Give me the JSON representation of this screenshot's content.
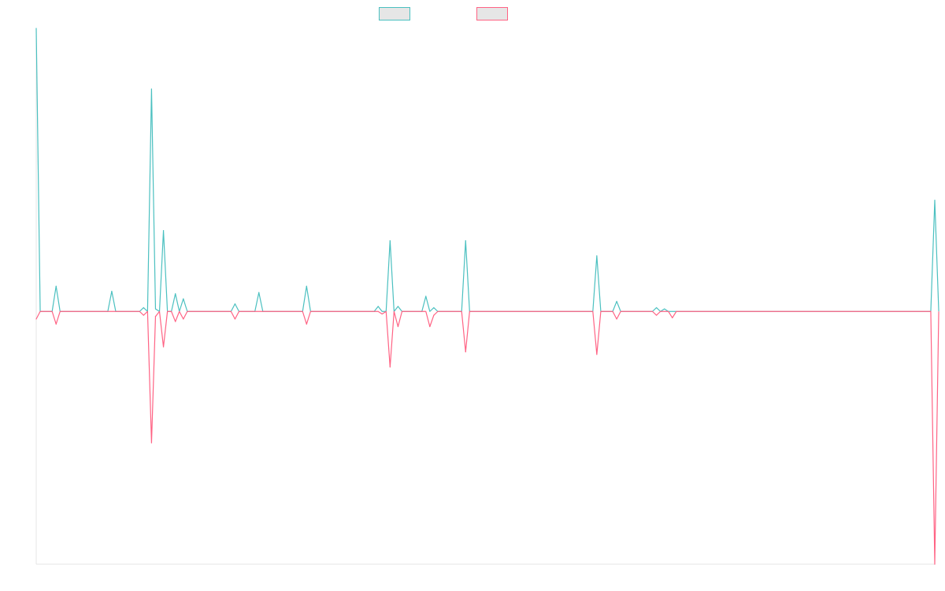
{
  "chart_data": {
    "type": "line",
    "title": "",
    "xlabel": "",
    "ylabel": "",
    "legend_position": "top-center",
    "grid": false,
    "ylim": [
      -100,
      112
    ],
    "x_count": 226,
    "series": [
      {
        "color": "#4bc0c0",
        "fill_color": "#e6e6e6",
        "points": [
          [
            0,
            112
          ],
          [
            1,
            0
          ],
          [
            4,
            0
          ],
          [
            5,
            10
          ],
          [
            6,
            0
          ],
          [
            18,
            0
          ],
          [
            19,
            8
          ],
          [
            20,
            0
          ],
          [
            26,
            0
          ],
          [
            27,
            1.5
          ],
          [
            28,
            0
          ],
          [
            29,
            88
          ],
          [
            30,
            1
          ],
          [
            31,
            0
          ],
          [
            32,
            32
          ],
          [
            33,
            0
          ],
          [
            34,
            0
          ],
          [
            35,
            7
          ],
          [
            36,
            0
          ],
          [
            37,
            5
          ],
          [
            38,
            0
          ],
          [
            49,
            0
          ],
          [
            50,
            3
          ],
          [
            51,
            0
          ],
          [
            55,
            0
          ],
          [
            56,
            7.5
          ],
          [
            57,
            0
          ],
          [
            67,
            0
          ],
          [
            68,
            10
          ],
          [
            69,
            0
          ],
          [
            85,
            0
          ],
          [
            86,
            2
          ],
          [
            87,
            0
          ],
          [
            88,
            0
          ],
          [
            89,
            28
          ],
          [
            90,
            0
          ],
          [
            91,
            2
          ],
          [
            92,
            0
          ],
          [
            97,
            0
          ],
          [
            98,
            6
          ],
          [
            99,
            0
          ],
          [
            100,
            1.5
          ],
          [
            101,
            0
          ],
          [
            107,
            0
          ],
          [
            108,
            28
          ],
          [
            109,
            0
          ],
          [
            140,
            0
          ],
          [
            141,
            22
          ],
          [
            142,
            0
          ],
          [
            145,
            0
          ],
          [
            146,
            4
          ],
          [
            147,
            0
          ],
          [
            155,
            0
          ],
          [
            156,
            1.5
          ],
          [
            157,
            0
          ],
          [
            158,
            1
          ],
          [
            159,
            0
          ],
          [
            225,
            0
          ],
          [
            226,
            44
          ],
          [
            227,
            0
          ]
        ]
      },
      {
        "color": "#ff6384",
        "fill_color": "#e6e6e6",
        "points": [
          [
            0,
            -3
          ],
          [
            1,
            0
          ],
          [
            4,
            0
          ],
          [
            5,
            -5
          ],
          [
            6,
            0
          ],
          [
            26,
            0
          ],
          [
            27,
            -1.5
          ],
          [
            28,
            0
          ],
          [
            29,
            -52
          ],
          [
            30,
            -2
          ],
          [
            31,
            0
          ],
          [
            32,
            -14
          ],
          [
            33,
            0
          ],
          [
            34,
            0
          ],
          [
            35,
            -4
          ],
          [
            36,
            0
          ],
          [
            37,
            -3
          ],
          [
            38,
            0
          ],
          [
            49,
            0
          ],
          [
            50,
            -3
          ],
          [
            51,
            0
          ],
          [
            67,
            0
          ],
          [
            68,
            -5
          ],
          [
            69,
            0
          ],
          [
            86,
            0
          ],
          [
            87,
            -1
          ],
          [
            88,
            0
          ],
          [
            89,
            -22
          ],
          [
            90,
            0
          ],
          [
            91,
            -6
          ],
          [
            92,
            0
          ],
          [
            98,
            0
          ],
          [
            99,
            -6
          ],
          [
            100,
            -1.5
          ],
          [
            101,
            0
          ],
          [
            107,
            0
          ],
          [
            108,
            -16
          ],
          [
            109,
            0
          ],
          [
            140,
            0
          ],
          [
            141,
            -17
          ],
          [
            142,
            0
          ],
          [
            145,
            0
          ],
          [
            146,
            -3
          ],
          [
            147,
            0
          ],
          [
            155,
            0
          ],
          [
            156,
            -1.5
          ],
          [
            157,
            0
          ],
          [
            159,
            0
          ],
          [
            160,
            -2.5
          ],
          [
            161,
            0
          ],
          [
            225,
            0
          ],
          [
            226,
            -100
          ],
          [
            227,
            0
          ]
        ]
      }
    ]
  }
}
